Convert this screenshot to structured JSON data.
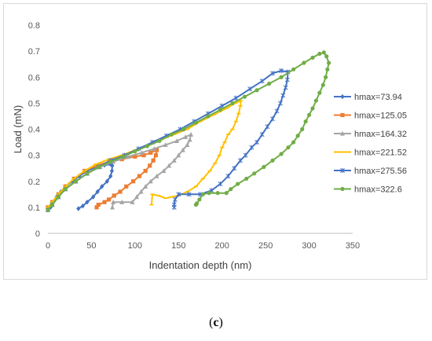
{
  "caption": {
    "prefix": "(",
    "letter": "c",
    "suffix": ")"
  },
  "chart_data": {
    "type": "line",
    "title": "",
    "xlabel": "Indentation depth (nm)",
    "ylabel": "Load (mN)",
    "xlim": [
      0,
      350
    ],
    "ylim": [
      0,
      0.8
    ],
    "xticks": [
      0,
      50,
      100,
      150,
      200,
      250,
      300,
      350
    ],
    "yticks": [
      0,
      0.1,
      0.2,
      0.3,
      0.4,
      0.5,
      0.6,
      0.7,
      0.8
    ],
    "grid": false,
    "legend_position": "right",
    "series": [
      {
        "name": "hmax=73.94",
        "color": "#4472C4",
        "marker": "diamond",
        "points": [
          [
            0,
            0.09
          ],
          [
            3,
            0.1
          ],
          [
            6,
            0.12
          ],
          [
            10,
            0.14
          ],
          [
            15,
            0.16
          ],
          [
            20,
            0.18
          ],
          [
            28,
            0.2
          ],
          [
            36,
            0.22
          ],
          [
            45,
            0.24
          ],
          [
            55,
            0.255
          ],
          [
            65,
            0.262
          ],
          [
            72,
            0.265
          ],
          [
            73.9,
            0.26
          ],
          [
            73.5,
            0.24
          ],
          [
            72,
            0.22
          ],
          [
            68,
            0.2
          ],
          [
            62,
            0.18
          ],
          [
            57,
            0.16
          ],
          [
            52,
            0.14
          ],
          [
            45,
            0.12
          ],
          [
            40,
            0.105
          ],
          [
            35,
            0.095
          ]
        ]
      },
      {
        "name": "hmax=125.05",
        "color": "#ED7D31",
        "marker": "square",
        "points": [
          [
            0,
            0.1
          ],
          [
            5,
            0.12
          ],
          [
            12,
            0.15
          ],
          [
            20,
            0.18
          ],
          [
            30,
            0.21
          ],
          [
            42,
            0.24
          ],
          [
            55,
            0.26
          ],
          [
            70,
            0.275
          ],
          [
            85,
            0.285
          ],
          [
            100,
            0.295
          ],
          [
            110,
            0.3
          ],
          [
            118,
            0.31
          ],
          [
            125,
            0.32
          ],
          [
            124,
            0.3
          ],
          [
            121,
            0.28
          ],
          [
            117,
            0.26
          ],
          [
            112,
            0.24
          ],
          [
            105,
            0.22
          ],
          [
            98,
            0.2
          ],
          [
            90,
            0.18
          ],
          [
            83,
            0.16
          ],
          [
            76,
            0.145
          ],
          [
            70,
            0.13
          ],
          [
            65,
            0.12
          ],
          [
            58,
            0.11
          ],
          [
            56,
            0.1
          ]
        ]
      },
      {
        "name": "hmax=164.32",
        "color": "#A5A5A5",
        "marker": "triangle",
        "points": [
          [
            0,
            0.09
          ],
          [
            5,
            0.11
          ],
          [
            12,
            0.14
          ],
          [
            20,
            0.17
          ],
          [
            32,
            0.2
          ],
          [
            45,
            0.23
          ],
          [
            60,
            0.255
          ],
          [
            75,
            0.275
          ],
          [
            92,
            0.295
          ],
          [
            108,
            0.31
          ],
          [
            122,
            0.325
          ],
          [
            135,
            0.34
          ],
          [
            148,
            0.355
          ],
          [
            158,
            0.37
          ],
          [
            164.3,
            0.38
          ],
          [
            163,
            0.36
          ],
          [
            160,
            0.34
          ],
          [
            155,
            0.32
          ],
          [
            150,
            0.3
          ],
          [
            145,
            0.28
          ],
          [
            139,
            0.26
          ],
          [
            133,
            0.24
          ],
          [
            125,
            0.22
          ],
          [
            118,
            0.2
          ],
          [
            112,
            0.18
          ],
          [
            107,
            0.16
          ],
          [
            102,
            0.14
          ],
          [
            97,
            0.12
          ],
          [
            85,
            0.12
          ],
          [
            75,
            0.12
          ],
          [
            74,
            0.1
          ]
        ]
      },
      {
        "name": "hmax=221.52",
        "color": "#FFC000",
        "marker": "dash",
        "points": [
          [
            0,
            0.1
          ],
          [
            5,
            0.12
          ],
          [
            12,
            0.15
          ],
          [
            20,
            0.18
          ],
          [
            30,
            0.21
          ],
          [
            42,
            0.24
          ],
          [
            55,
            0.265
          ],
          [
            70,
            0.285
          ],
          [
            85,
            0.3
          ],
          [
            100,
            0.32
          ],
          [
            115,
            0.34
          ],
          [
            130,
            0.36
          ],
          [
            145,
            0.38
          ],
          [
            160,
            0.4
          ],
          [
            175,
            0.43
          ],
          [
            190,
            0.455
          ],
          [
            205,
            0.48
          ],
          [
            215,
            0.5
          ],
          [
            221.5,
            0.51
          ],
          [
            221,
            0.49
          ],
          [
            219,
            0.46
          ],
          [
            216,
            0.43
          ],
          [
            212,
            0.4
          ],
          [
            207,
            0.38
          ],
          [
            203,
            0.35
          ],
          [
            200,
            0.33
          ],
          [
            197,
            0.3
          ],
          [
            192,
            0.27
          ],
          [
            186,
            0.24
          ],
          [
            178,
            0.21
          ],
          [
            170,
            0.18
          ],
          [
            160,
            0.16
          ],
          [
            150,
            0.145
          ],
          [
            142,
            0.14
          ],
          [
            135,
            0.135
          ],
          [
            127,
            0.145
          ],
          [
            120,
            0.15
          ],
          [
            119,
            0.11
          ]
        ]
      },
      {
        "name": "hmax=275.56",
        "color": "#4472C4",
        "marker": "star",
        "points": [
          [
            0,
            0.09
          ],
          [
            5,
            0.11
          ],
          [
            12,
            0.14
          ],
          [
            20,
            0.17
          ],
          [
            32,
            0.2
          ],
          [
            45,
            0.23
          ],
          [
            58,
            0.255
          ],
          [
            72,
            0.28
          ],
          [
            88,
            0.3
          ],
          [
            104,
            0.325
          ],
          [
            120,
            0.35
          ],
          [
            136,
            0.375
          ],
          [
            152,
            0.4
          ],
          [
            168,
            0.43
          ],
          [
            184,
            0.46
          ],
          [
            200,
            0.49
          ],
          [
            216,
            0.52
          ],
          [
            232,
            0.555
          ],
          [
            246,
            0.585
          ],
          [
            258,
            0.615
          ],
          [
            268,
            0.625
          ],
          [
            275.6,
            0.62
          ],
          [
            275,
            0.59
          ],
          [
            273,
            0.56
          ],
          [
            270,
            0.53
          ],
          [
            267,
            0.5
          ],
          [
            263,
            0.47
          ],
          [
            258,
            0.44
          ],
          [
            252,
            0.41
          ],
          [
            246,
            0.38
          ],
          [
            240,
            0.35
          ],
          [
            234,
            0.33
          ],
          [
            227,
            0.3
          ],
          [
            221,
            0.28
          ],
          [
            214,
            0.25
          ],
          [
            207,
            0.22
          ],
          [
            198,
            0.19
          ],
          [
            188,
            0.165
          ],
          [
            175,
            0.15
          ],
          [
            162,
            0.15
          ],
          [
            150,
            0.15
          ],
          [
            146,
            0.13
          ],
          [
            145,
            0.11
          ],
          [
            145,
            0.1
          ]
        ]
      },
      {
        "name": "hmax=322.6",
        "color": "#70AD47",
        "marker": "circle",
        "points": [
          [
            0,
            0.09
          ],
          [
            5,
            0.11
          ],
          [
            12,
            0.14
          ],
          [
            20,
            0.17
          ],
          [
            32,
            0.2
          ],
          [
            45,
            0.23
          ],
          [
            58,
            0.255
          ],
          [
            72,
            0.275
          ],
          [
            86,
            0.295
          ],
          [
            100,
            0.315
          ],
          [
            114,
            0.335
          ],
          [
            128,
            0.355
          ],
          [
            142,
            0.38
          ],
          [
            156,
            0.4
          ],
          [
            170,
            0.425
          ],
          [
            184,
            0.45
          ],
          [
            198,
            0.475
          ],
          [
            212,
            0.5
          ],
          [
            226,
            0.525
          ],
          [
            240,
            0.55
          ],
          [
            254,
            0.575
          ],
          [
            268,
            0.6
          ],
          [
            282,
            0.63
          ],
          [
            294,
            0.655
          ],
          [
            304,
            0.675
          ],
          [
            312,
            0.69
          ],
          [
            317,
            0.695
          ],
          [
            320,
            0.68
          ],
          [
            322.6,
            0.655
          ],
          [
            321,
            0.63
          ],
          [
            319,
            0.6
          ],
          [
            316,
            0.57
          ],
          [
            312,
            0.54
          ],
          [
            308,
            0.51
          ],
          [
            304,
            0.48
          ],
          [
            300,
            0.455
          ],
          [
            296,
            0.43
          ],
          [
            292,
            0.4
          ],
          [
            287,
            0.375
          ],
          [
            282,
            0.35
          ],
          [
            276,
            0.33
          ],
          [
            268,
            0.305
          ],
          [
            258,
            0.28
          ],
          [
            248,
            0.255
          ],
          [
            237,
            0.23
          ],
          [
            228,
            0.21
          ],
          [
            218,
            0.19
          ],
          [
            210,
            0.17
          ],
          [
            205,
            0.155
          ],
          [
            195,
            0.155
          ],
          [
            185,
            0.155
          ],
          [
            178,
            0.15
          ],
          [
            174,
            0.13
          ],
          [
            171,
            0.115
          ],
          [
            170,
            0.11
          ]
        ]
      }
    ]
  }
}
